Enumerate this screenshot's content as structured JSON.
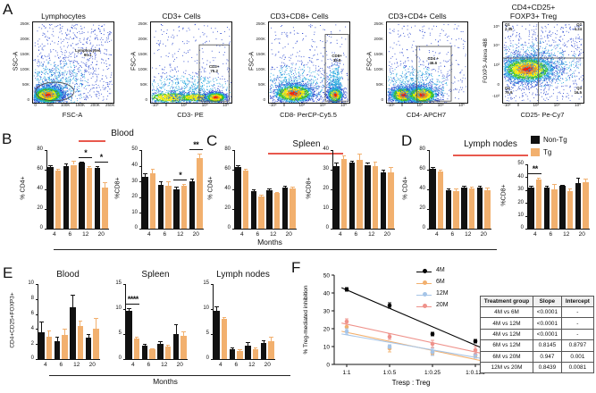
{
  "panel_labels": {
    "a": "A",
    "b": "B",
    "c": "C",
    "d": "D",
    "e": "E",
    "f": "F"
  },
  "months_label": "Months",
  "legend": {
    "non_tg": "Non-Tg",
    "tg": "Tg"
  },
  "colors": {
    "non_tg": "#111111",
    "tg": "#f2b06e",
    "underline": "#e8584d",
    "m4": "#000000",
    "m6": "#f2b06e",
    "m12": "#a6c5e8",
    "m20": "#ef928b"
  },
  "panels": {
    "b": {
      "title": "Blood"
    },
    "c": {
      "title": "Spleen"
    },
    "d": {
      "title": "Lymph nodes"
    },
    "e": {
      "titles": [
        "Blood",
        "Spleen",
        "Lymph nodes"
      ],
      "ylabel": "CD4+CD25+FOXP3+"
    },
    "f": {}
  },
  "chart_data": [
    {
      "id": "a_lymph",
      "type": "flow",
      "title": [
        "Lymphocytes"
      ],
      "xlabel": "FSC-A",
      "ylabel": "SSC-A",
      "xscale": "linear",
      "yscale": "linear",
      "xticks": [
        "0",
        "50K",
        "100K",
        "150K",
        "200K",
        "250K"
      ],
      "yticks": [
        "250K",
        "200K",
        "150K",
        "100K",
        "50K",
        "0"
      ],
      "gate": {
        "shape": "ellipse",
        "cx": 0.27,
        "cy": 0.14,
        "rx": 0.24,
        "ry": 0.115,
        "label": "Lymphocytes",
        "value": "90.1",
        "lx": 0.68,
        "ly": 0.62
      },
      "clusters": [
        {
          "x": 0.18,
          "y": 0.1,
          "sx": 0.1,
          "sy": 0.055,
          "n": 2600,
          "cap": 5
        },
        {
          "x": 0.28,
          "y": 0.24,
          "sx": 0.22,
          "sy": 0.16,
          "n": 700,
          "cap": 1
        },
        {
          "u": 1,
          "n": 600
        }
      ]
    },
    {
      "id": "a_cd3",
      "type": "flow",
      "title": [
        "CD3+ Cells"
      ],
      "xlabel": "CD3- PE",
      "ylabel": "FSC-A",
      "xscale": "log",
      "yscale": "linear",
      "xticks": [
        "-10³",
        "0",
        "10³",
        "10⁴",
        "10⁵"
      ],
      "yticks": [
        "250K",
        "200K",
        "150K",
        "100K",
        "50K",
        "0"
      ],
      "gate": {
        "shape": "rect",
        "x0": 0.6,
        "y0": 0.02,
        "x1": 0.97,
        "y1": 0.72,
        "label": "CD3+",
        "value": "75.2",
        "lx": 0.785,
        "ly": 0.42
      },
      "clusters": [
        {
          "x": 0.25,
          "y": 0.07,
          "sx": 0.18,
          "sy": 0.035,
          "n": 900,
          "cap": 3
        },
        {
          "x": 0.55,
          "y": 0.07,
          "sx": 0.12,
          "sy": 0.03,
          "n": 600,
          "cap": 3
        },
        {
          "x": 0.8,
          "y": 0.07,
          "sx": 0.07,
          "sy": 0.035,
          "n": 1100,
          "cap": 5
        },
        {
          "x": 0.45,
          "y": 0.18,
          "sx": 0.3,
          "sy": 0.1,
          "n": 500,
          "cap": 1
        },
        {
          "u": 1,
          "n": 250
        }
      ]
    },
    {
      "id": "a_cd8",
      "type": "flow",
      "title": [
        "CD3+CD8+ Cells"
      ],
      "xlabel": "CD8- PerCP-Cy5.5",
      "ylabel": "FSC-A",
      "xscale": "log",
      "yscale": "linear",
      "xticks": [
        "-10³",
        "0",
        "10³",
        "10⁴",
        "10⁵"
      ],
      "yticks": [
        "250K",
        "200K",
        "150K",
        "100K",
        "50K",
        "0"
      ],
      "gate": {
        "shape": "rect",
        "x0": 0.7,
        "y0": 0.02,
        "x1": 0.99,
        "y1": 0.85,
        "label": "CD8+",
        "value": "35.8",
        "lx": 0.845,
        "ly": 0.56
      },
      "clusters": [
        {
          "x": 0.3,
          "y": 0.12,
          "sx": 0.13,
          "sy": 0.06,
          "n": 2000,
          "cap": 5
        },
        {
          "x": 0.3,
          "y": 0.24,
          "sx": 0.22,
          "sy": 0.13,
          "n": 500,
          "cap": 1
        },
        {
          "x": 0.82,
          "y": 0.1,
          "sx": 0.05,
          "sy": 0.05,
          "n": 1000,
          "cap": 5
        },
        {
          "x": 0.82,
          "y": 0.26,
          "sx": 0.05,
          "sy": 0.12,
          "n": 350,
          "cap": 1
        },
        {
          "u": 1,
          "n": 300
        }
      ]
    },
    {
      "id": "a_cd4",
      "type": "flow",
      "title": [
        "CD3+CD4+ Cells"
      ],
      "xlabel": "CD4- APCH7",
      "ylabel": "FSC-A",
      "xscale": "log",
      "yscale": "linear",
      "xticks": [
        "-10³",
        "0",
        "10³",
        "10⁴",
        "10⁵"
      ],
      "yticks": [
        "250K",
        "200K",
        "150K",
        "100K",
        "50K",
        "0"
      ],
      "gate": {
        "shape": "rect",
        "x0": 0.37,
        "y0": 0.02,
        "x1": 0.8,
        "y1": 0.7,
        "label": "CD4 +",
        "value": "46.6",
        "lx": 0.575,
        "ly": 0.52
      },
      "clusters": [
        {
          "x": 0.2,
          "y": 0.1,
          "sx": 0.085,
          "sy": 0.05,
          "n": 1500,
          "cap": 5
        },
        {
          "x": 0.43,
          "y": 0.1,
          "sx": 0.1,
          "sy": 0.055,
          "n": 1600,
          "cap": 5
        },
        {
          "x": 0.32,
          "y": 0.22,
          "sx": 0.24,
          "sy": 0.13,
          "n": 600,
          "cap": 1
        },
        {
          "u": 1,
          "n": 300
        }
      ]
    },
    {
      "id": "a_treg",
      "type": "flow",
      "title": [
        "CD4+CD25+",
        "FOXP3+ Treg"
      ],
      "xlabel": "CD25- Pe-Cy7",
      "ylabel": "FOXP3- Alexa 488",
      "xscale": "log",
      "yscale": "log",
      "xticks": [
        "-10³",
        "0",
        "10³",
        "10⁴",
        "10⁵"
      ],
      "yticks": [
        "10⁵",
        "10⁴",
        "10³",
        "0",
        "-10³"
      ],
      "quad": {
        "vx": 0.44,
        "hy": 0.555,
        "q1": "2.35",
        "q2": "4.24",
        "q3": "16.5",
        "q4": "76.9",
        "q1l": "Q1",
        "q2l": "Q2",
        "q3l": "Q3",
        "q4l": "Q4"
      },
      "clusters": [
        {
          "x": 0.3,
          "y": 0.42,
          "sx": 0.17,
          "sy": 0.085,
          "n": 2800,
          "cap": 5
        },
        {
          "x": 0.42,
          "y": 0.48,
          "sx": 0.3,
          "sy": 0.16,
          "n": 800,
          "cap": 1
        },
        {
          "u": 1,
          "n": 500
        }
      ]
    },
    {
      "id": "b_cd4",
      "type": "bar",
      "ylabel": "% CD4+",
      "ylim": [
        0,
        80
      ],
      "yticks": [
        0,
        20,
        40,
        60,
        80
      ],
      "categories": [
        "4",
        "6",
        "12",
        "20"
      ],
      "series": [
        {
          "name": "Non-Tg",
          "color": "non_tg",
          "values": [
            63,
            64,
            67,
            62
          ],
          "err": [
            2,
            2,
            1.5,
            2
          ]
        },
        {
          "name": "Tg",
          "color": "tg",
          "values": [
            59,
            65,
            62,
            42
          ],
          "err": [
            2,
            4,
            2,
            5
          ]
        }
      ],
      "sig": [
        {
          "g": 2,
          "t": "*"
        },
        {
          "g": 3,
          "t": "*"
        }
      ]
    },
    {
      "id": "b_cd8",
      "type": "bar",
      "ylabel": "%CD8+",
      "ylim": [
        0,
        50
      ],
      "yticks": [
        0,
        10,
        20,
        30,
        40,
        50
      ],
      "categories": [
        "4",
        "6",
        "12",
        "20"
      ],
      "series": [
        {
          "name": "Non-Tg",
          "color": "non_tg",
          "values": [
            33,
            28,
            25,
            30
          ],
          "err": [
            2,
            2,
            1.5,
            2
          ]
        },
        {
          "name": "Tg",
          "color": "tg",
          "values": [
            35,
            27,
            27,
            45
          ],
          "err": [
            3,
            3,
            1.5,
            3
          ]
        }
      ],
      "sig": [
        {
          "g": 2,
          "t": "*"
        },
        {
          "g": 3,
          "t": "**"
        }
      ]
    },
    {
      "id": "c_cd4",
      "type": "bar",
      "ylabel": "% CD4+",
      "ylim": [
        0,
        80
      ],
      "yticks": [
        0,
        20,
        40,
        60,
        80
      ],
      "categories": [
        "4",
        "6",
        "12",
        "20"
      ],
      "series": [
        {
          "name": "Non-Tg",
          "color": "non_tg",
          "values": [
            63,
            38,
            39,
            42
          ],
          "err": [
            1.5,
            2,
            1.5,
            1.5
          ]
        },
        {
          "name": "Tg",
          "color": "tg",
          "values": [
            59,
            33,
            36,
            41
          ],
          "err": [
            1.5,
            2,
            1.5,
            2
          ]
        }
      ]
    },
    {
      "id": "c_cd8",
      "type": "bar",
      "ylabel": "%CD8+",
      "ylim": [
        0,
        40
      ],
      "yticks": [
        0,
        10,
        20,
        30,
        40
      ],
      "categories": [
        "4",
        "6",
        "12",
        "20"
      ],
      "series": [
        {
          "name": "Non-Tg",
          "color": "non_tg",
          "values": [
            32,
            33.5,
            32.5,
            28.5
          ],
          "err": [
            1.5,
            1,
            1,
            1.5
          ]
        },
        {
          "name": "Tg",
          "color": "tg",
          "values": [
            35.5,
            35,
            32,
            28.5
          ],
          "err": [
            2,
            3,
            2,
            3
          ]
        }
      ]
    },
    {
      "id": "d_cd4",
      "type": "bar",
      "ylabel": "% CD4+",
      "ylim": [
        0,
        80
      ],
      "yticks": [
        0,
        20,
        40,
        60,
        80
      ],
      "categories": [
        "4",
        "6",
        "12",
        "20"
      ],
      "series": [
        {
          "name": "Non-Tg",
          "color": "non_tg",
          "values": [
            61,
            39,
            42,
            42
          ],
          "err": [
            2,
            2,
            2,
            2
          ]
        },
        {
          "name": "Tg",
          "color": "tg",
          "values": [
            58,
            38,
            41,
            39
          ],
          "err": [
            2,
            3,
            2,
            3
          ]
        }
      ]
    },
    {
      "id": "d_cd8",
      "type": "bar",
      "ylabel": "%CD8+",
      "ylim": [
        0,
        50
      ],
      "yticks": [
        0,
        10,
        20,
        30,
        40,
        50
      ],
      "categories": [
        "4",
        "6",
        "12",
        "20"
      ],
      "series": [
        {
          "name": "Non-Tg",
          "color": "non_tg",
          "values": [
            32,
            32,
            33,
            35.5
          ],
          "err": [
            1,
            1.5,
            1,
            4
          ]
        },
        {
          "name": "Tg",
          "color": "tg",
          "values": [
            38,
            30.5,
            29,
            36
          ],
          "err": [
            1.5,
            4,
            2,
            3
          ]
        }
      ],
      "sig": [
        {
          "g": 0,
          "t": "**"
        }
      ]
    },
    {
      "id": "e_blood",
      "type": "bar",
      "ylabel": "",
      "ylim": [
        0,
        10
      ],
      "yticks": [
        0,
        2,
        4,
        6,
        8,
        10
      ],
      "categories": [
        "4",
        "6",
        "12",
        "20"
      ],
      "series": [
        {
          "name": "Non-Tg",
          "color": "non_tg",
          "values": [
            3.6,
            2.4,
            6.9,
            2.9
          ],
          "err": [
            1.4,
            0.6,
            1.7,
            0.4
          ]
        },
        {
          "name": "Tg",
          "color": "tg",
          "values": [
            3.0,
            3.2,
            4.4,
            4.1
          ],
          "err": [
            0.8,
            0.9,
            0.7,
            1.4
          ]
        }
      ]
    },
    {
      "id": "e_spleen",
      "type": "bar",
      "ylabel": "",
      "ylim": [
        0,
        15
      ],
      "yticks": [
        0,
        5,
        10,
        15
      ],
      "categories": [
        "4",
        "6",
        "12",
        "20"
      ],
      "series": [
        {
          "name": "Non-Tg",
          "color": "non_tg",
          "values": [
            9.7,
            2.6,
            3.0,
            5.0
          ],
          "err": [
            0.5,
            0.5,
            0.5,
            2
          ]
        },
        {
          "name": "Tg",
          "color": "tg",
          "values": [
            4.1,
            1.9,
            2.5,
            4.6
          ],
          "err": [
            0.3,
            0.3,
            0.3,
            1
          ]
        }
      ],
      "sig": [
        {
          "g": 0,
          "t": "****"
        }
      ]
    },
    {
      "id": "e_ln",
      "type": "bar",
      "ylabel": "",
      "ylim": [
        0,
        15
      ],
      "yticks": [
        0,
        5,
        10,
        15
      ],
      "categories": [
        "4",
        "6",
        "12",
        "20"
      ],
      "series": [
        {
          "name": "Non-Tg",
          "color": "non_tg",
          "values": [
            9.6,
            1.9,
            2.6,
            3.2
          ],
          "err": [
            1.0,
            0.4,
            0.8,
            0.6
          ]
        },
        {
          "name": "Tg",
          "color": "tg",
          "values": [
            8.0,
            1.6,
            2.0,
            3.5
          ],
          "err": [
            0.4,
            0.3,
            0.4,
            1.0
          ]
        }
      ]
    },
    {
      "id": "f_inhib",
      "type": "scatter-line",
      "ylabel": "% Treg-mediated inhibition",
      "xlabel": "Tresp : Treg",
      "ylim": [
        0,
        50
      ],
      "yticks": [
        0,
        10,
        20,
        30,
        40,
        50
      ],
      "categories": [
        "1:1",
        "1:0.5",
        "1:0.25",
        "1:0.125"
      ],
      "series": [
        {
          "name": "4M",
          "color": "m4",
          "values": [
            42,
            33,
            17,
            13
          ],
          "err": [
            1,
            1.5,
            1,
            1
          ]
        },
        {
          "name": "6M",
          "color": "m6",
          "values": [
            21,
            9,
            6.5,
            5
          ],
          "err": [
            3,
            2,
            1,
            1
          ]
        },
        {
          "name": "12M",
          "color": "m12",
          "values": [
            18.5,
            10,
            7,
            5.5
          ],
          "err": [
            1.5,
            1,
            2,
            2
          ]
        },
        {
          "name": "20M",
          "color": "m20",
          "values": [
            24,
            15.5,
            11.5,
            8
          ],
          "err": [
            1.5,
            1.5,
            2,
            2
          ]
        }
      ],
      "legend_position": "top-right"
    },
    {
      "id": "f_table",
      "type": "table",
      "headers": [
        "Treatment group",
        "Slope",
        "Intercept"
      ],
      "rows": [
        [
          "4M vs 6M",
          "<0.0001",
          "-"
        ],
        [
          "4M vs 12M",
          "<0.0001",
          "-"
        ],
        [
          "4M vs 12M",
          "<0.0001",
          "-"
        ],
        [
          "6M vs 12M",
          "0.8145",
          "0.8797"
        ],
        [
          "6M vs 20M",
          "0.947",
          "0.001"
        ],
        [
          "12M vs 20M",
          "0.8439",
          "0.0081"
        ]
      ]
    }
  ]
}
